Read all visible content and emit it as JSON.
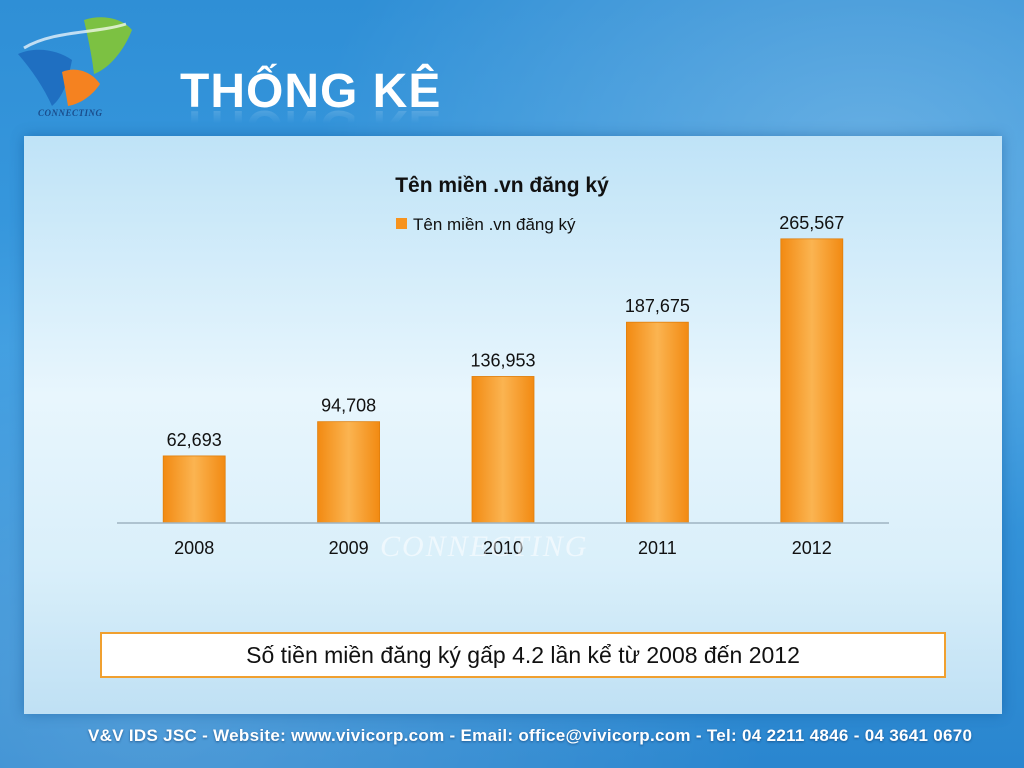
{
  "slide": {
    "title": "THỐNG KÊ",
    "logo_text": "CONNECTING",
    "watermark": "CONNECTING",
    "callout": "Số tiền miền đăng ký gấp 4.2 lần kể từ 2008 đến 2012",
    "footer": "V&V IDS JSC - Website: www.vivicorp.com - Email: office@vivicorp.com - Tel: 04 2211 4846 - 04 3641 0670"
  },
  "colors": {
    "bar": "#f7931e",
    "bar_light": "#fbb451",
    "logo_blue": "#1f6fc1",
    "logo_orange": "#f58220",
    "logo_green": "#7cc142"
  },
  "chart_data": {
    "type": "bar",
    "title": "Tên miền .vn đăng ký",
    "categories": [
      "2008",
      "2009",
      "2010",
      "2011",
      "2012"
    ],
    "series": [
      {
        "name": "Tên miền .vn đăng ký",
        "values": [
          62693,
          94708,
          136953,
          187675,
          265567
        ]
      }
    ],
    "data_labels": [
      "62,693",
      "94,708",
      "136,953",
      "187,675",
      "265,567"
    ],
    "ylim": [
      0,
      300000
    ],
    "xlabel": "",
    "ylabel": "",
    "grid": false,
    "legend": "top"
  }
}
